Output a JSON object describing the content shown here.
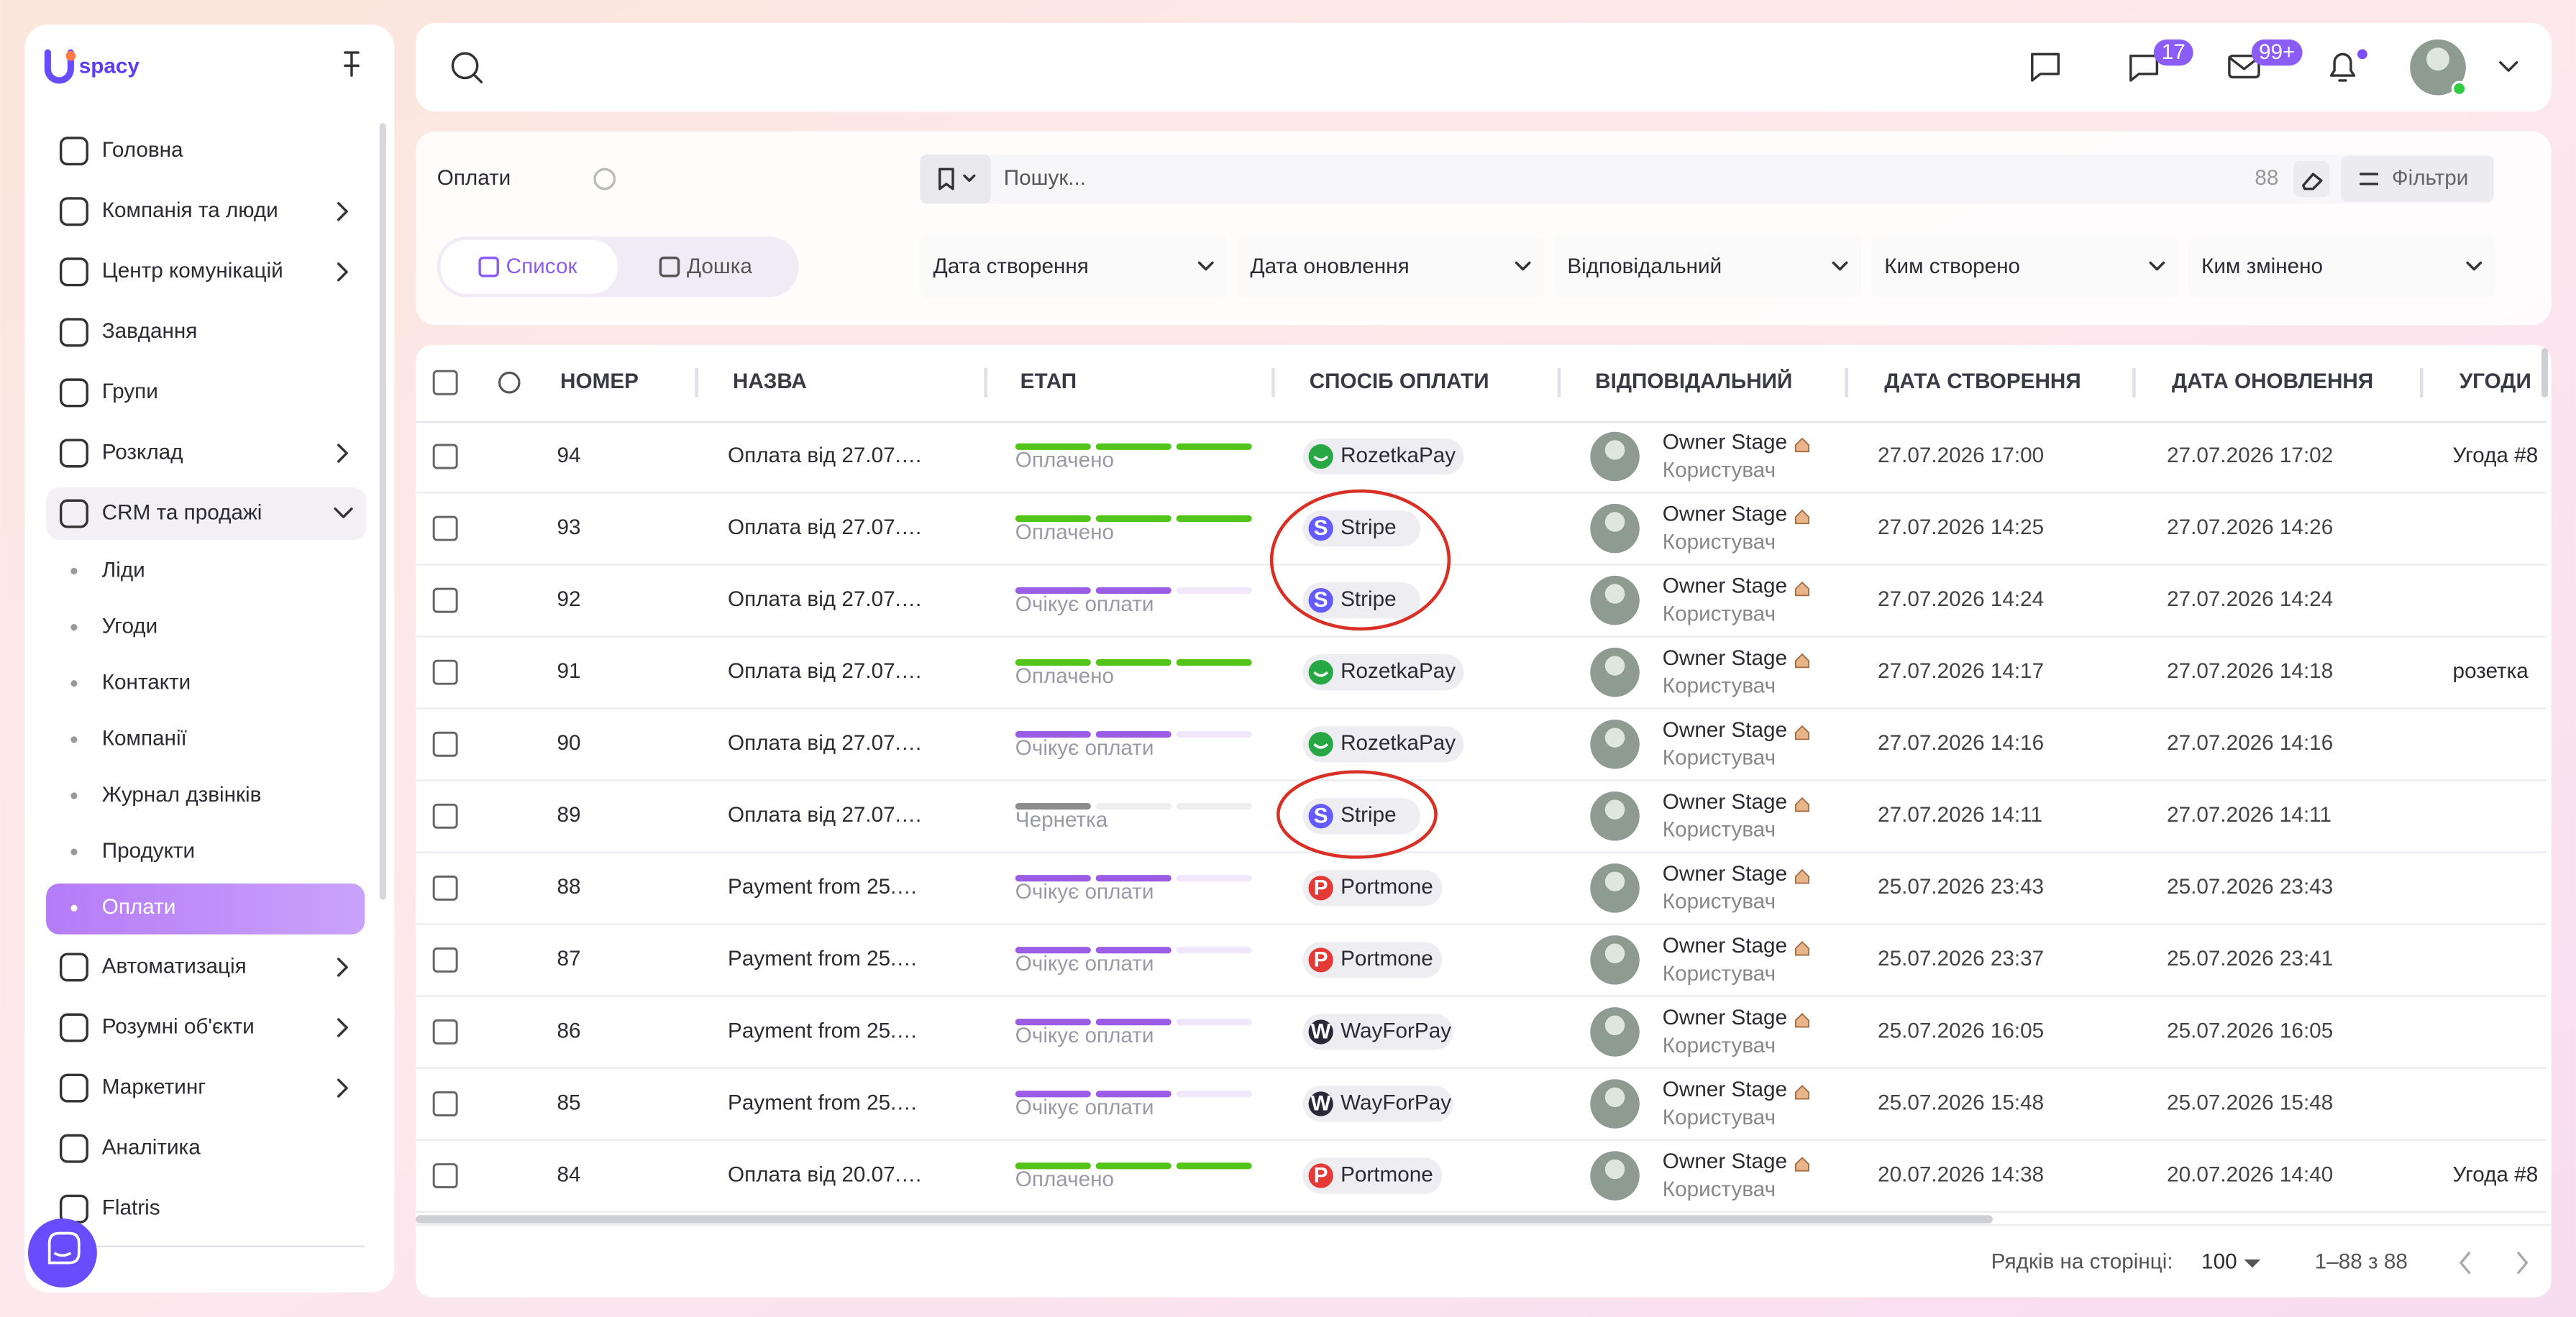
{
  "brand": "spacy",
  "nav": [
    {
      "label": "Головна"
    },
    {
      "label": "Компанія та люди",
      "expandable": true
    },
    {
      "label": "Центр комунікацій",
      "expandable": true
    },
    {
      "label": "Завдання"
    },
    {
      "label": "Групи"
    },
    {
      "label": "Розклад",
      "expandable": true
    },
    {
      "label": "CRM та продажі",
      "expanded": true,
      "children": [
        {
          "label": "Ліди"
        },
        {
          "label": "Угоди"
        },
        {
          "label": "Контакти"
        },
        {
          "label": "Компанії"
        },
        {
          "label": "Журнал дзвінків"
        },
        {
          "label": "Продукти"
        },
        {
          "label": "Оплати",
          "active": true
        }
      ]
    },
    {
      "label": "Автоматизація",
      "expandable": true
    },
    {
      "label": "Розумні об'єкти",
      "expandable": true
    },
    {
      "label": "Маркетинг",
      "expandable": true
    },
    {
      "label": "Аналітика"
    },
    {
      "label": "Flatris"
    }
  ],
  "topbar": {
    "chat_badge": 17,
    "mail_badge": "99+"
  },
  "header": {
    "title": "Оплати",
    "views": [
      {
        "label": "Список",
        "active": true
      },
      {
        "label": "Дошка"
      }
    ],
    "search_placeholder": "Пошук...",
    "count": 88,
    "filters_button": "Фільтри",
    "filters": [
      "Дата створення",
      "Дата оновлення",
      "Відповідальний",
      "Ким створено",
      "Ким змінено"
    ]
  },
  "payment_methods": [
    {
      "name": "RozetkaPay",
      "color": "#27a844"
    },
    {
      "name": "Stripe",
      "icon": "S",
      "color": "#635bff"
    },
    {
      "name": "Portmone",
      "icon": "P",
      "color": "#e53935"
    },
    {
      "name": "WayForPay",
      "icon": "W",
      "color": "#2a2838"
    }
  ],
  "table": {
    "columns": [
      "НОМЕР",
      "НАЗВА",
      "ЕТАП",
      "СПОСІБ ОПЛАТИ",
      "ВІДПОВІДАЛЬНИЙ",
      "ДАТА СТВОРЕННЯ",
      "ДАТА ОНОВЛЕННЯ",
      "УГОДИ"
    ],
    "progress_steps": 3,
    "rows": [
      {
        "number": 94,
        "name": "Оплата від 27.07.…",
        "stage": "Оплачено",
        "progress": 3,
        "color": "#52c41a",
        "method": "RozetkaPay",
        "responsible": "Owner Stage",
        "role": "Користувач",
        "created": "27.07.2026 17:00",
        "updated": "27.07.2026 17:02",
        "deal": "Угода #8"
      },
      {
        "number": 93,
        "name": "Оплата від 27.07.…",
        "stage": "Оплачено",
        "progress": 3,
        "color": "#52c41a",
        "method": "Stripe",
        "responsible": "Owner Stage",
        "role": "Користувач",
        "created": "27.07.2026 14:25",
        "updated": "27.07.2026 14:26"
      },
      {
        "number": 92,
        "name": "Оплата від 27.07.…",
        "stage": "Очікує оплати",
        "progress": 2,
        "color": "#9b5de5",
        "method": "Stripe",
        "responsible": "Owner Stage",
        "role": "Користувач",
        "created": "27.07.2026 14:24",
        "updated": "27.07.2026 14:24"
      },
      {
        "number": 91,
        "name": "Оплата від 27.07.…",
        "stage": "Оплачено",
        "progress": 3,
        "color": "#52c41a",
        "method": "RozetkaPay",
        "responsible": "Owner Stage",
        "role": "Користувач",
        "created": "27.07.2026 14:17",
        "updated": "27.07.2026 14:18",
        "deal": "розетка"
      },
      {
        "number": 90,
        "name": "Оплата від 27.07.…",
        "stage": "Очікує оплати",
        "progress": 2,
        "color": "#9b5de5",
        "method": "RozetkaPay",
        "responsible": "Owner Stage",
        "role": "Користувач",
        "created": "27.07.2026 14:16",
        "updated": "27.07.2026 14:16"
      },
      {
        "number": 89,
        "name": "Оплата від 27.07.…",
        "stage": "Чернетка",
        "progress": 1,
        "color": "#8c8c8c",
        "method": "Stripe",
        "responsible": "Owner Stage",
        "role": "Користувач",
        "created": "27.07.2026 14:11",
        "updated": "27.07.2026 14:11"
      },
      {
        "number": 88,
        "name": "Payment from 25.…",
        "stage": "Очікує оплати",
        "progress": 2,
        "color": "#9b5de5",
        "method": "Portmone",
        "responsible": "Owner Stage",
        "role": "Користувач",
        "created": "25.07.2026 23:43",
        "updated": "25.07.2026 23:43"
      },
      {
        "number": 87,
        "name": "Payment from 25.…",
        "stage": "Очікує оплати",
        "progress": 2,
        "color": "#9b5de5",
        "method": "Portmone",
        "responsible": "Owner Stage",
        "role": "Користувач",
        "created": "25.07.2026 23:37",
        "updated": "25.07.2026 23:41"
      },
      {
        "number": 86,
        "name": "Payment from 25.…",
        "stage": "Очікує оплати",
        "progress": 2,
        "color": "#9b5de5",
        "method": "WayForPay",
        "responsible": "Owner Stage",
        "role": "Користувач",
        "created": "25.07.2026 16:05",
        "updated": "25.07.2026 16:05"
      },
      {
        "number": 85,
        "name": "Payment from 25.…",
        "stage": "Очікує оплати",
        "progress": 2,
        "color": "#9b5de5",
        "method": "WayForPay",
        "responsible": "Owner Stage",
        "role": "Користувач",
        "created": "25.07.2026 15:48",
        "updated": "25.07.2026 15:48"
      },
      {
        "number": 84,
        "name": "Оплата від 20.07.…",
        "stage": "Оплачено",
        "progress": 3,
        "color": "#52c41a",
        "method": "Portmone",
        "responsible": "Owner Stage",
        "role": "Користувач",
        "created": "20.07.2026 14:38",
        "updated": "20.07.2026 14:40",
        "deal": "Угода #8"
      }
    ]
  },
  "footer": {
    "rows_per_page_label": "Рядків на сторінці:",
    "rows_per_page": 100,
    "range": "1–88 з 88"
  }
}
